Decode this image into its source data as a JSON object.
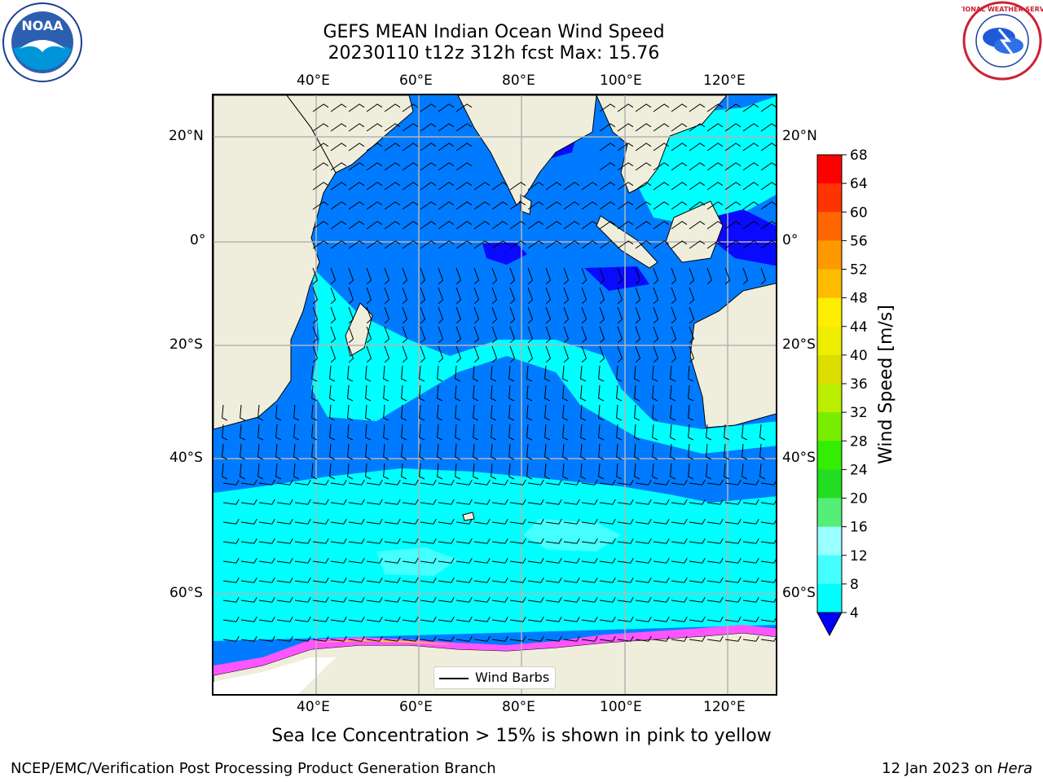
{
  "title": {
    "line1": "GEFS MEAN Indian Ocean Wind Speed",
    "line2": "20230110 t12z 312h fcst   Max: 15.76"
  },
  "map": {
    "lon_labels": [
      "40°E",
      "60°E",
      "80°E",
      "100°E",
      "120°E"
    ],
    "lat_labels_left": [
      "20°N",
      "0°",
      "20°S",
      "40°S",
      "60°S"
    ],
    "lat_labels_right": [
      "20°N",
      "0°",
      "20°S",
      "40°S",
      "60°S"
    ],
    "legend_label": "Wind Barbs",
    "colors": {
      "land": "#efeedc",
      "calm": "#0a0aff",
      "speed_4_8": "#007bff",
      "speed_8_12": "#00ffff",
      "speed_12_16": "#45ffff",
      "sea_ice": "#ff55ff"
    }
  },
  "colorbar": {
    "title": "Wind Speed [m/s]",
    "ticks": [
      "4",
      "8",
      "12",
      "16",
      "20",
      "24",
      "28",
      "32",
      "36",
      "40",
      "44",
      "48",
      "52",
      "56",
      "60",
      "64",
      "68"
    ],
    "colors": [
      "#0077ff",
      "#00ffff",
      "#44ffff",
      "#99ffff",
      "#55ee77",
      "#22dd22",
      "#33ee00",
      "#77ee00",
      "#bbee00",
      "#dddd00",
      "#eeee00",
      "#ffee00",
      "#ffbb00",
      "#ff9900",
      "#ff6600",
      "#ff3300",
      "#ff0000"
    ],
    "extend_color": "#0000ff"
  },
  "note": "Sea Ice Concentration > 15% is shown in pink to yellow",
  "footer": {
    "left": "NCEP/EMC/Verification Post Processing Product Generation Branch",
    "right_date": "12 Jan 2023 on",
    "right_machine": "Hera"
  },
  "logos": {
    "left_text": "NOAA",
    "right_text": "NATIONAL WEATHER SERVICE"
  }
}
